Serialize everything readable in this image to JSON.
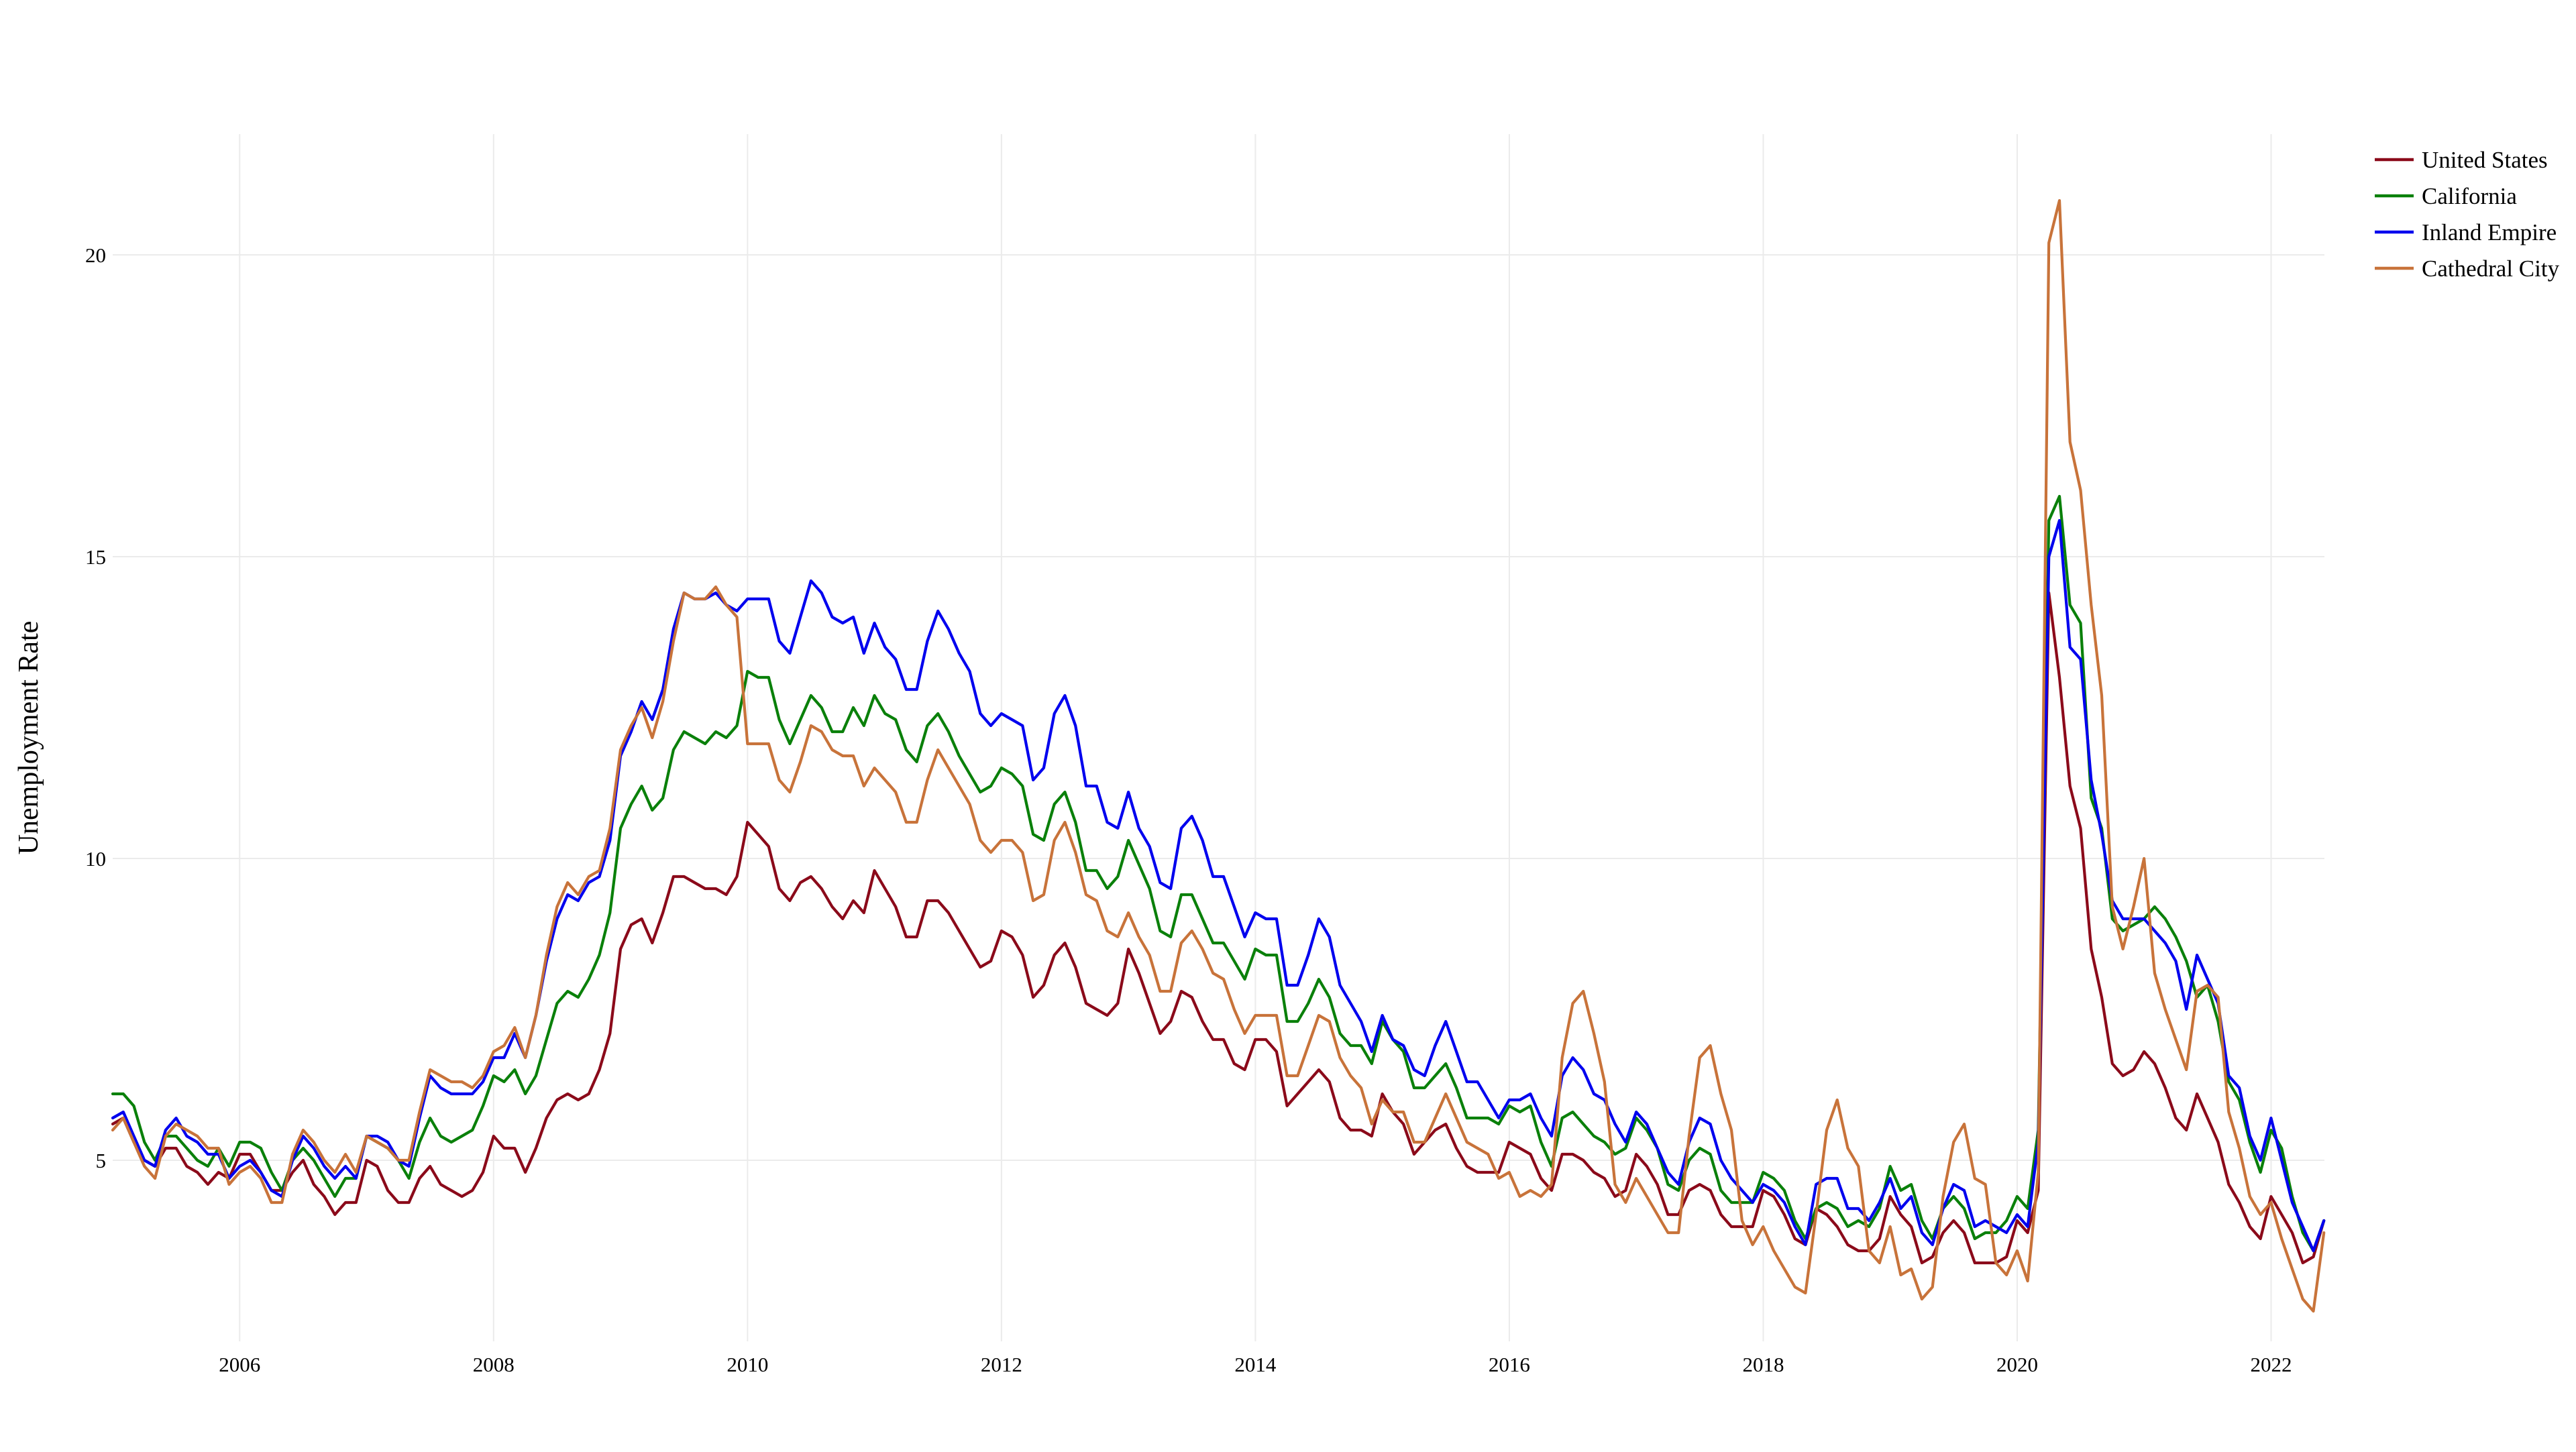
{
  "chart_data": {
    "type": "line",
    "title": "",
    "xlabel": "",
    "ylabel": "Unemployment Rate",
    "xlim": [
      2005.0,
      2022.42
    ],
    "ylim": [
      2.0,
      22.0
    ],
    "grid": true,
    "legend_position": "top-right",
    "x_ticks": [
      2006,
      2008,
      2010,
      2012,
      2014,
      2016,
      2018,
      2020,
      2022
    ],
    "x_tick_labels": [
      "2006",
      "2008",
      "2010",
      "2012",
      "2014",
      "2016",
      "2018",
      "2020",
      "2022"
    ],
    "y_ticks": [
      5,
      10,
      15,
      20
    ],
    "y_tick_labels": [
      "5",
      "10",
      "15",
      "20"
    ],
    "x_start": 2005.0,
    "x_step": 0.08333,
    "series": [
      {
        "name": "United States",
        "color": "#8b0a1a",
        "values": [
          5.6,
          5.7,
          5.3,
          5.0,
          4.9,
          5.2,
          5.2,
          4.9,
          4.8,
          4.6,
          4.8,
          4.7,
          5.1,
          5.1,
          4.8,
          4.5,
          4.5,
          4.8,
          5.0,
          4.6,
          4.4,
          4.1,
          4.3,
          4.3,
          5.0,
          4.9,
          4.5,
          4.3,
          4.3,
          4.7,
          4.9,
          4.6,
          4.5,
          4.4,
          4.5,
          4.8,
          5.4,
          5.2,
          5.2,
          4.8,
          5.2,
          5.7,
          6.0,
          6.1,
          6.0,
          6.1,
          6.5,
          7.1,
          8.5,
          8.9,
          9.0,
          8.6,
          9.1,
          9.7,
          9.7,
          9.6,
          9.5,
          9.5,
          9.4,
          9.7,
          10.6,
          10.4,
          10.2,
          9.5,
          9.3,
          9.6,
          9.7,
          9.5,
          9.2,
          9.0,
          9.3,
          9.1,
          9.8,
          9.5,
          9.2,
          8.7,
          8.7,
          9.3,
          9.3,
          9.1,
          8.8,
          8.5,
          8.2,
          8.3,
          8.8,
          8.7,
          8.4,
          7.7,
          7.9,
          8.4,
          8.6,
          8.2,
          7.6,
          7.5,
          7.4,
          7.6,
          8.5,
          8.1,
          7.6,
          7.1,
          7.3,
          7.8,
          7.7,
          7.3,
          7.0,
          7.0,
          6.6,
          6.5,
          7.0,
          7.0,
          6.8,
          5.9,
          6.1,
          6.3,
          6.5,
          6.3,
          5.7,
          5.5,
          5.5,
          5.4,
          6.1,
          5.8,
          5.6,
          5.1,
          5.3,
          5.5,
          5.6,
          5.2,
          4.9,
          4.8,
          4.8,
          4.8,
          5.3,
          5.2,
          5.1,
          4.7,
          4.5,
          5.1,
          5.1,
          5.0,
          4.8,
          4.7,
          4.4,
          4.5,
          5.1,
          4.9,
          4.6,
          4.1,
          4.1,
          4.5,
          4.6,
          4.5,
          4.1,
          3.9,
          3.9,
          3.9,
          4.5,
          4.4,
          4.1,
          3.7,
          3.6,
          4.2,
          4.1,
          3.9,
          3.6,
          3.5,
          3.5,
          3.7,
          4.4,
          4.1,
          3.9,
          3.3,
          3.4,
          3.8,
          4.0,
          3.8,
          3.3,
          3.3,
          3.3,
          3.4,
          4.0,
          3.8,
          4.5,
          14.4,
          13.0,
          11.2,
          10.5,
          8.5,
          7.7,
          6.6,
          6.4,
          6.5,
          6.8,
          6.6,
          6.2,
          5.7,
          5.5,
          6.1,
          5.7,
          5.3,
          4.6,
          4.3,
          3.9,
          3.7,
          4.4,
          4.1,
          3.8,
          3.3,
          3.4,
          4.0
        ]
      },
      {
        "name": "California",
        "color": "#0a800a",
        "values": [
          6.1,
          6.1,
          5.9,
          5.3,
          5.0,
          5.4,
          5.4,
          5.2,
          5.0,
          4.9,
          5.2,
          4.9,
          5.3,
          5.3,
          5.2,
          4.8,
          4.5,
          5.0,
          5.2,
          5.0,
          4.7,
          4.4,
          4.7,
          4.7,
          5.4,
          5.3,
          5.2,
          5.0,
          4.7,
          5.3,
          5.7,
          5.4,
          5.3,
          5.4,
          5.5,
          5.9,
          6.4,
          6.3,
          6.5,
          6.1,
          6.4,
          7.0,
          7.6,
          7.8,
          7.7,
          8.0,
          8.4,
          9.1,
          10.5,
          10.9,
          11.2,
          10.8,
          11.0,
          11.8,
          12.1,
          12.0,
          11.9,
          12.1,
          12.0,
          12.2,
          13.1,
          13.0,
          13.0,
          12.3,
          11.9,
          12.3,
          12.7,
          12.5,
          12.1,
          12.1,
          12.5,
          12.2,
          12.7,
          12.4,
          12.3,
          11.8,
          11.6,
          12.2,
          12.4,
          12.1,
          11.7,
          11.4,
          11.1,
          11.2,
          11.5,
          11.4,
          11.2,
          10.4,
          10.3,
          10.9,
          11.1,
          10.6,
          9.8,
          9.8,
          9.5,
          9.7,
          10.3,
          9.9,
          9.5,
          8.8,
          8.7,
          9.4,
          9.4,
          9.0,
          8.6,
          8.6,
          8.3,
          8.0,
          8.5,
          8.4,
          8.4,
          7.3,
          7.3,
          7.6,
          8.0,
          7.7,
          7.1,
          6.9,
          6.9,
          6.6,
          7.3,
          7.0,
          6.8,
          6.2,
          6.2,
          6.4,
          6.6,
          6.2,
          5.7,
          5.7,
          5.7,
          5.6,
          5.9,
          5.8,
          5.9,
          5.3,
          4.9,
          5.7,
          5.8,
          5.6,
          5.4,
          5.3,
          5.1,
          5.2,
          5.7,
          5.5,
          5.2,
          4.6,
          4.5,
          5.0,
          5.2,
          5.1,
          4.5,
          4.3,
          4.3,
          4.3,
          4.8,
          4.7,
          4.5,
          4.0,
          3.7,
          4.2,
          4.3,
          4.2,
          3.9,
          4.0,
          3.9,
          4.2,
          4.9,
          4.5,
          4.6,
          4.0,
          3.7,
          4.2,
          4.4,
          4.2,
          3.7,
          3.8,
          3.8,
          4.0,
          4.4,
          4.2,
          5.5,
          15.6,
          16.0,
          14.2,
          13.9,
          11.0,
          10.5,
          9.0,
          8.8,
          8.9,
          9.0,
          9.2,
          9.0,
          8.7,
          8.3,
          7.7,
          7.9,
          7.3,
          6.3,
          6.0,
          5.3,
          4.8,
          5.5,
          5.2,
          4.4,
          3.8,
          3.5,
          4.0
        ]
      },
      {
        "name": "Inland Empire",
        "color": "#0000ee",
        "values": [
          5.7,
          5.8,
          5.4,
          5.0,
          4.9,
          5.5,
          5.7,
          5.4,
          5.3,
          5.1,
          5.1,
          4.7,
          4.9,
          5.0,
          4.8,
          4.5,
          4.4,
          5.0,
          5.4,
          5.2,
          4.9,
          4.7,
          4.9,
          4.7,
          5.4,
          5.4,
          5.3,
          5.0,
          4.9,
          5.7,
          6.4,
          6.2,
          6.1,
          6.1,
          6.1,
          6.3,
          6.7,
          6.7,
          7.1,
          6.7,
          7.4,
          8.3,
          9.0,
          9.4,
          9.3,
          9.6,
          9.7,
          10.3,
          11.7,
          12.1,
          12.6,
          12.3,
          12.8,
          13.8,
          14.4,
          14.3,
          14.3,
          14.4,
          14.2,
          14.1,
          14.3,
          14.3,
          14.3,
          13.6,
          13.4,
          14.0,
          14.6,
          14.4,
          14.0,
          13.9,
          14.0,
          13.4,
          13.9,
          13.5,
          13.3,
          12.8,
          12.8,
          13.6,
          14.1,
          13.8,
          13.4,
          13.1,
          12.4,
          12.2,
          12.4,
          12.3,
          12.2,
          11.3,
          11.5,
          12.4,
          12.7,
          12.2,
          11.2,
          11.2,
          10.6,
          10.5,
          11.1,
          10.5,
          10.2,
          9.6,
          9.5,
          10.5,
          10.7,
          10.3,
          9.7,
          9.7,
          9.2,
          8.7,
          9.1,
          9.0,
          9.0,
          7.9,
          7.9,
          8.4,
          9.0,
          8.7,
          7.9,
          7.6,
          7.3,
          6.8,
          7.4,
          7.0,
          6.9,
          6.5,
          6.4,
          6.9,
          7.3,
          6.8,
          6.3,
          6.3,
          6.0,
          5.7,
          6.0,
          6.0,
          6.1,
          5.7,
          5.4,
          6.4,
          6.7,
          6.5,
          6.1,
          6.0,
          5.6,
          5.3,
          5.8,
          5.6,
          5.2,
          4.8,
          4.6,
          5.3,
          5.7,
          5.6,
          5.0,
          4.7,
          4.5,
          4.3,
          4.6,
          4.5,
          4.3,
          3.9,
          3.6,
          4.6,
          4.7,
          4.7,
          4.2,
          4.2,
          4.0,
          4.3,
          4.7,
          4.2,
          4.4,
          3.8,
          3.6,
          4.2,
          4.6,
          4.5,
          3.9,
          4.0,
          3.9,
          3.8,
          4.1,
          3.9,
          5.3,
          15.0,
          15.6,
          13.5,
          13.3,
          11.3,
          10.4,
          9.3,
          9.0,
          9.0,
          9.0,
          8.8,
          8.6,
          8.3,
          7.5,
          8.4,
          8.0,
          7.6,
          6.4,
          6.2,
          5.4,
          5.0,
          5.7,
          5.0,
          4.3,
          3.9,
          3.5,
          4.0
        ]
      },
      {
        "name": "Cathedral City",
        "color": "#c8733a",
        "values": [
          5.5,
          5.7,
          5.3,
          4.9,
          4.7,
          5.4,
          5.6,
          5.5,
          5.4,
          5.2,
          5.2,
          4.6,
          4.8,
          4.9,
          4.7,
          4.3,
          4.3,
          5.1,
          5.5,
          5.3,
          5.0,
          4.8,
          5.1,
          4.8,
          5.4,
          5.3,
          5.2,
          5.0,
          5.0,
          5.8,
          6.5,
          6.4,
          6.3,
          6.3,
          6.2,
          6.4,
          6.8,
          6.9,
          7.2,
          6.7,
          7.4,
          8.4,
          9.2,
          9.6,
          9.4,
          9.7,
          9.8,
          10.5,
          11.8,
          12.2,
          12.5,
          12.0,
          12.6,
          13.6,
          14.4,
          14.3,
          14.3,
          14.5,
          14.2,
          14.0,
          11.9,
          11.9,
          11.9,
          11.3,
          11.1,
          11.6,
          12.2,
          12.1,
          11.8,
          11.7,
          11.7,
          11.2,
          11.5,
          11.3,
          11.1,
          10.6,
          10.6,
          11.3,
          11.8,
          11.5,
          11.2,
          10.9,
          10.3,
          10.1,
          10.3,
          10.3,
          10.1,
          9.3,
          9.4,
          10.3,
          10.6,
          10.1,
          9.4,
          9.3,
          8.8,
          8.7,
          9.1,
          8.7,
          8.4,
          7.8,
          7.8,
          8.6,
          8.8,
          8.5,
          8.1,
          8.0,
          7.5,
          7.1,
          7.4,
          7.4,
          7.4,
          6.4,
          6.4,
          6.9,
          7.4,
          7.3,
          6.7,
          6.4,
          6.2,
          5.6,
          6.0,
          5.8,
          5.8,
          5.3,
          5.3,
          5.7,
          6.1,
          5.7,
          5.3,
          5.2,
          5.1,
          4.7,
          4.8,
          4.4,
          4.5,
          4.4,
          4.6,
          6.7,
          7.6,
          7.8,
          7.1,
          6.3,
          4.6,
          4.3,
          4.7,
          4.4,
          4.1,
          3.8,
          3.8,
          5.4,
          6.7,
          6.9,
          6.1,
          5.5,
          4.0,
          3.6,
          3.9,
          3.5,
          3.2,
          2.9,
          2.8,
          4.1,
          5.5,
          6.0,
          5.2,
          4.9,
          3.5,
          3.3,
          3.9,
          3.1,
          3.2,
          2.7,
          2.9,
          4.4,
          5.3,
          5.6,
          4.7,
          4.6,
          3.3,
          3.1,
          3.5,
          3.0,
          4.8,
          20.2,
          20.9,
          16.9,
          16.1,
          14.2,
          12.7,
          9.2,
          8.5,
          9.2,
          10.0,
          8.1,
          7.5,
          7.0,
          6.5,
          7.8,
          7.9,
          7.7,
          5.8,
          5.2,
          4.4,
          4.1,
          4.3,
          3.7,
          3.2,
          2.7,
          2.5,
          3.8
        ]
      }
    ]
  }
}
